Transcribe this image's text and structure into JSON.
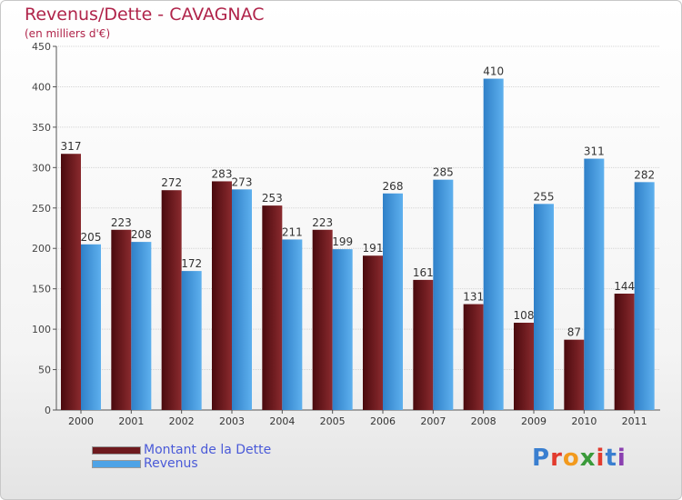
{
  "title": "Revenus/Dette - CAVAGNAC",
  "subtitle": "(en milliers d'€)",
  "logo": "Proxiti",
  "colors": {
    "dette": "#6e1a1e",
    "revenus": "#4ea3e6",
    "title": "#b0244a",
    "legend_text": "#4a5ad8"
  },
  "chart_data": {
    "type": "bar",
    "title": "Revenus/Dette - CAVAGNAC",
    "subtitle": "(en milliers d'€)",
    "xlabel": "",
    "ylabel": "",
    "ylim": [
      0,
      450
    ],
    "yticks": [
      0,
      50,
      100,
      150,
      200,
      250,
      300,
      350,
      400,
      450
    ],
    "grid": "horizontal",
    "legend_position": "bottom-left",
    "categories": [
      "2000",
      "2001",
      "2002",
      "2003",
      "2004",
      "2005",
      "2006",
      "2007",
      "2008",
      "2009",
      "2010",
      "2011"
    ],
    "series": [
      {
        "name": "Montant de la Dette",
        "color": "#6e1a1e",
        "values": [
          317,
          223,
          272,
          283,
          253,
          223,
          191,
          161,
          131,
          108,
          87,
          144
        ]
      },
      {
        "name": "Revenus",
        "color": "#4ea3e6",
        "values": [
          205,
          208,
          172,
          273,
          211,
          199,
          268,
          285,
          410,
          255,
          311,
          282
        ]
      }
    ]
  }
}
